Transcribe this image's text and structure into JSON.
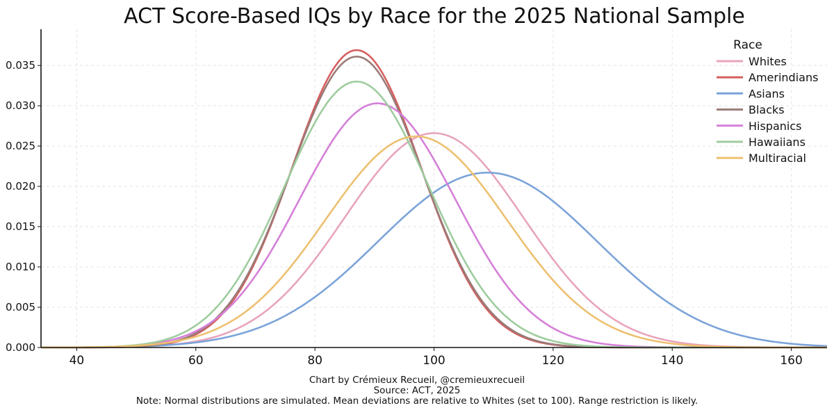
{
  "chart_data": {
    "type": "line",
    "title": "ACT Score-Based IQs by Race for the 2025 National Sample",
    "xlabel": "",
    "ylabel": "",
    "xlim": [
      34,
      166
    ],
    "ylim": [
      0,
      0.0395
    ],
    "x_ticks": [
      40,
      60,
      80,
      100,
      120,
      140,
      160
    ],
    "x_tick_labels": [
      "40",
      "60",
      "80",
      "100",
      "120",
      "140",
      "160"
    ],
    "y_ticks": [
      0,
      0.005,
      0.01,
      0.015,
      0.02,
      0.025,
      0.03,
      0.035
    ],
    "y_tick_labels": [
      "0.000",
      "0.005",
      "0.010",
      "0.015",
      "0.020",
      "0.025",
      "0.030",
      "0.035"
    ],
    "grid": true,
    "legend": {
      "title": "Race",
      "placement": "top-right"
    },
    "series": [
      {
        "name": "Whites",
        "mean": 100,
        "sd": 15.0,
        "peak": 0.0266,
        "color": "#E8A4BC"
      },
      {
        "name": "Amerindians",
        "mean": 87,
        "sd": 10.8,
        "peak": 0.0369,
        "color": "#D65F5F"
      },
      {
        "name": "Asians",
        "mean": 109,
        "sd": 18.4,
        "peak": 0.0217,
        "color": "#7BA3D9"
      },
      {
        "name": "Blacks",
        "mean": 87,
        "sd": 11.0,
        "peak": 0.0361,
        "color": "#9A7B78"
      },
      {
        "name": "Hispanics",
        "mean": 90.5,
        "sd": 13.1,
        "peak": 0.0303,
        "color": "#D580D8"
      },
      {
        "name": "Hawaiians",
        "mean": 87,
        "sd": 12.1,
        "peak": 0.033,
        "color": "#9ECC9E"
      },
      {
        "name": "Multiracial",
        "mean": 97,
        "sd": 15.2,
        "peak": 0.0262,
        "color": "#EDC070"
      }
    ]
  },
  "footer": {
    "credit": "Chart by Crémieux Recueil, @cremieuxrecueil",
    "source": "Source: ACT, 2025",
    "note": "Note: Normal distributions are simulated. Mean deviations are relative to Whites (set to 100). Range restriction is likely."
  }
}
